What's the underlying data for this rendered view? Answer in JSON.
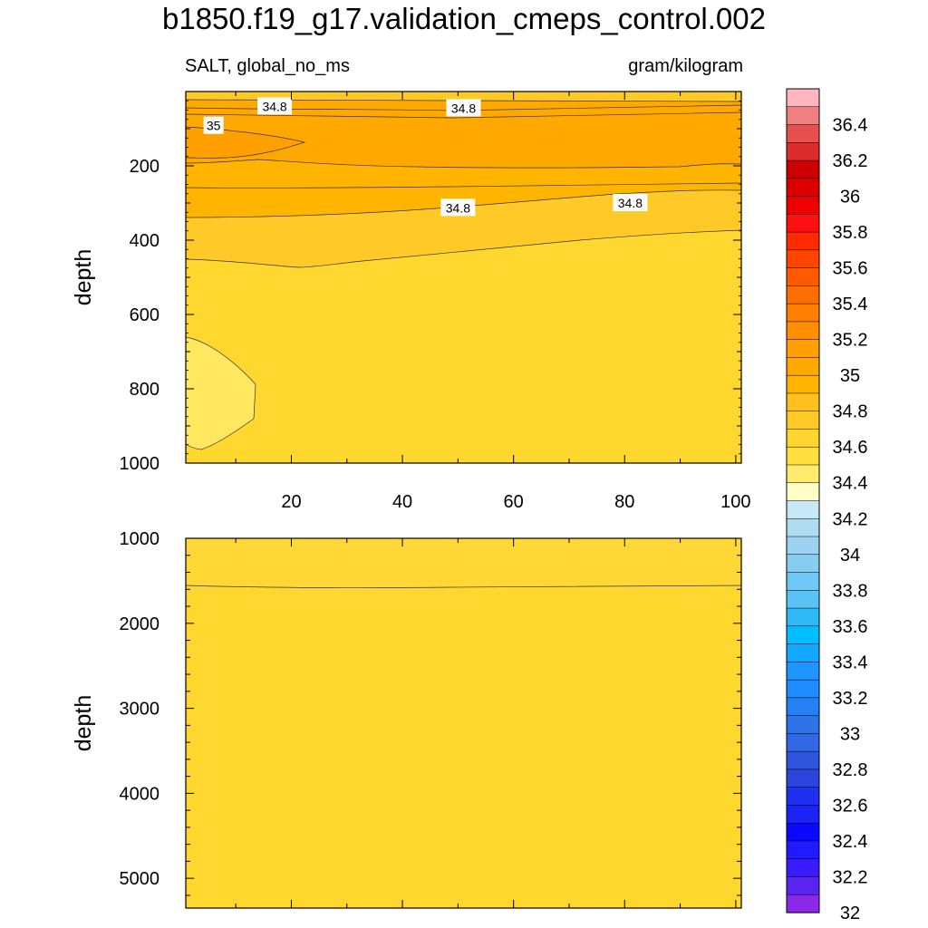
{
  "chart_data": {
    "type": "contour",
    "title": "b1850.f19_g17.validation_cmeps_control.002",
    "subtitle_left": "SALT, global_no_ms",
    "subtitle_right": "gram/kilogram",
    "panels": [
      {
        "ylabel": "depth",
        "yrange": [
          1000,
          0
        ],
        "xrange": [
          1,
          101
        ],
        "xticks": [
          20,
          40,
          60,
          80,
          100
        ],
        "yticks": [
          200,
          400,
          600,
          800,
          1000
        ],
        "contour_labels": [
          {
            "text": "34.8",
            "x": 17,
            "depth": 40
          },
          {
            "text": "34.8",
            "x": 51,
            "depth": 45
          },
          {
            "text": "35",
            "x": 6,
            "depth": 92
          },
          {
            "text": "34.8",
            "x": 50,
            "depth": 313
          },
          {
            "text": "34.8",
            "x": 81,
            "depth": 300
          }
        ]
      },
      {
        "ylabel": "depth",
        "yrange": [
          5350,
          1000
        ],
        "xrange": [
          1,
          101
        ],
        "yticks": [
          1000,
          2000,
          3000,
          4000,
          5000
        ]
      }
    ],
    "colorbar": {
      "labels": [
        "36.4",
        "36.2",
        "36",
        "35.8",
        "35.6",
        "35.4",
        "35.2",
        "35",
        "34.8",
        "34.6",
        "34.4",
        "34.2",
        "34",
        "33.8",
        "33.6",
        "33.4",
        "33.2",
        "33",
        "32.8",
        "32.6",
        "32.4",
        "32.2",
        "32"
      ],
      "colors": [
        "#ffb6c1",
        "#f08080",
        "#e85050",
        "#dc2c2c",
        "#cc0000",
        "#dd0000",
        "#ee0000",
        "#ff1010",
        "#ff2a00",
        "#ff4500",
        "#ff5a00",
        "#ff6e00",
        "#ff7f00",
        "#ff8f00",
        "#ffa000",
        "#ffa800",
        "#ffb400",
        "#ffc020",
        "#ffca28",
        "#ffd52e",
        "#ffe040",
        "#ffeb6e",
        "#ffffc8",
        "#c8e8f6",
        "#b0dcf2",
        "#9dd3f0",
        "#87cdf0",
        "#6fc8f3",
        "#5ac3f5",
        "#30b9f7",
        "#00bfff",
        "#12a8ff",
        "#1e96ff",
        "#1e8cff",
        "#2680f4",
        "#2c74e8",
        "#3068e6",
        "#3055dd",
        "#2d45dd",
        "#2030ee",
        "#1a22f4",
        "#0a08ff",
        "#1f1aff",
        "#3a1aff",
        "#5a24f0",
        "#8c28ea"
      ]
    }
  }
}
